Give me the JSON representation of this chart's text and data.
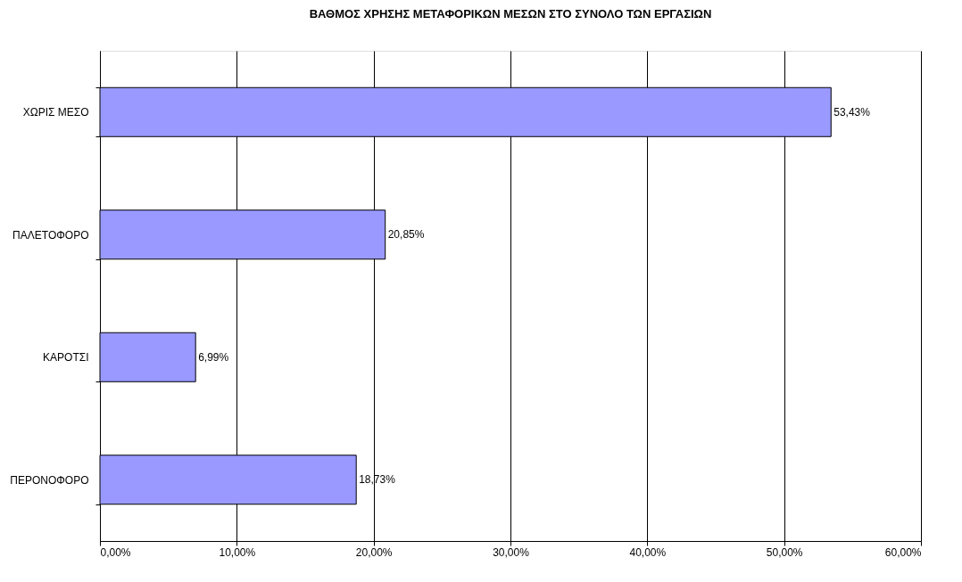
{
  "chart_data": {
    "type": "bar",
    "orientation": "horizontal",
    "title": "ΒΑΘΜΟΣ ΧΡΗΣΗΣ ΜΕΤΑΦΟΡΙΚΩΝ ΜΕΣΩΝ ΣΤΟ ΣΥΝΟΛΟ ΤΩΝ ΕΡΓΑΣΙΩΝ",
    "categories": [
      "ΧΩΡΙΣ ΜΕΣΟ",
      "ΠΑΛΕΤΟΦΟΡΟ",
      "ΚΑΡΟΤΣΙ",
      "ΠΕΡΟΝΟΦΟΡΟ"
    ],
    "values": [
      53.43,
      20.85,
      6.99,
      18.73
    ],
    "value_labels": [
      "53,43%",
      "20,85%",
      "6,99%",
      "18,73%"
    ],
    "color": "#9999ff",
    "xlim": [
      0,
      60
    ],
    "xticks": [
      {
        "value": 0,
        "label": "0,00%"
      },
      {
        "value": 10,
        "label": "10,00%"
      },
      {
        "value": 20,
        "label": "20,00%"
      },
      {
        "value": 30,
        "label": "30,00%"
      },
      {
        "value": 40,
        "label": "40,00%"
      },
      {
        "value": 50,
        "label": "50,00%"
      },
      {
        "value": 60,
        "label": "60,00%"
      }
    ],
    "grid": "x"
  }
}
